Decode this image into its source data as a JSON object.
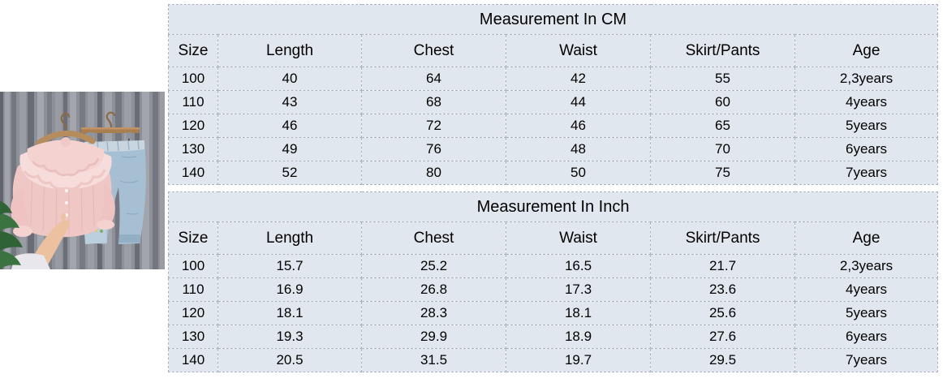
{
  "page": {
    "background": "#ffffff"
  },
  "product_image": {
    "alt": "pink-ruffled-blouse-and-blue-jeans-on-wooden-hangers",
    "colors": {
      "curtain_base": "#8e9099",
      "curtain_dark": "#72747d",
      "curtain_light": "#a3a5ac",
      "hanger_wood": "#b78c5d",
      "hanger_hook": "#8a6a44",
      "blouse_pink": "#efc7c5",
      "blouse_lace": "#f6dcda",
      "jeans_blue": "#a6bfd2",
      "jeans_waistband": "#c9d6e0",
      "jeans_patch": "#bccfdd",
      "strap_dark": "#4a4a50",
      "skin": "#ecc19f",
      "plant_green": "#3a7340",
      "plant_green_dark": "#2f6336",
      "cloth_white": "#e8e8ec",
      "patch_dot_red": "#e05545",
      "patch_dot_yellow": "#e8c93e"
    }
  },
  "size_chart": {
    "cell_background": "#e0e7ee",
    "border_color": "#a9b3bd",
    "tables": [
      {
        "title": "Measurement In CM",
        "headers": [
          "Size",
          "Length",
          "Chest",
          "Waist",
          "Skirt/Pants",
          "Age"
        ],
        "rows": [
          [
            "100",
            "40",
            "64",
            "42",
            "55",
            "2,3years"
          ],
          [
            "110",
            "43",
            "68",
            "44",
            "60",
            "4years"
          ],
          [
            "120",
            "46",
            "72",
            "46",
            "65",
            "5years"
          ],
          [
            "130",
            "49",
            "76",
            "48",
            "70",
            "6years"
          ],
          [
            "140",
            "52",
            "80",
            "50",
            "75",
            "7years"
          ]
        ]
      },
      {
        "title": "Measurement In Inch",
        "headers": [
          "Size",
          "Length",
          "Chest",
          "Waist",
          "Skirt/Pants",
          "Age"
        ],
        "rows": [
          [
            "100",
            "15.7",
            "25.2",
            "16.5",
            "21.7",
            "2,3years"
          ],
          [
            "110",
            "16.9",
            "26.8",
            "17.3",
            "23.6",
            "4years"
          ],
          [
            "120",
            "18.1",
            "28.3",
            "18.1",
            "25.6",
            "5years"
          ],
          [
            "130",
            "19.3",
            "29.9",
            "18.9",
            "27.6",
            "6years"
          ],
          [
            "140",
            "20.5",
            "31.5",
            "19.7",
            "29.5",
            "7years"
          ]
        ]
      }
    ]
  }
}
